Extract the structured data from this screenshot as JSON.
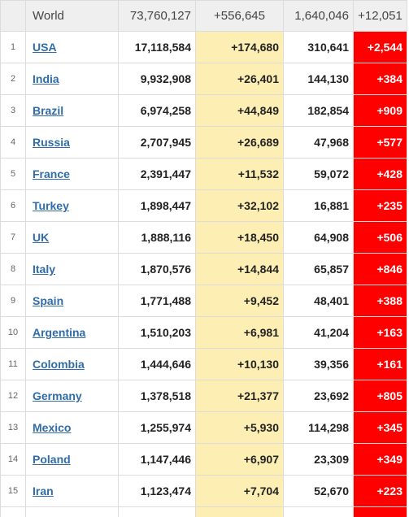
{
  "header": {
    "label": "World",
    "total_cases": "73,760,127",
    "new_cases": "+556,645",
    "total_deaths": "1,640,046",
    "new_deaths": "+12,051"
  },
  "rows": [
    {
      "rank": "1",
      "country": "USA",
      "total_cases": "17,118,584",
      "new_cases": "+174,680",
      "total_deaths": "310,641",
      "new_deaths": "+2,544"
    },
    {
      "rank": "2",
      "country": "India",
      "total_cases": "9,932,908",
      "new_cases": "+26,401",
      "total_deaths": "144,130",
      "new_deaths": "+384"
    },
    {
      "rank": "3",
      "country": "Brazil",
      "total_cases": "6,974,258",
      "new_cases": "+44,849",
      "total_deaths": "182,854",
      "new_deaths": "+909"
    },
    {
      "rank": "4",
      "country": "Russia",
      "total_cases": "2,707,945",
      "new_cases": "+26,689",
      "total_deaths": "47,968",
      "new_deaths": "+577"
    },
    {
      "rank": "5",
      "country": "France",
      "total_cases": "2,391,447",
      "new_cases": "+11,532",
      "total_deaths": "59,072",
      "new_deaths": "+428"
    },
    {
      "rank": "6",
      "country": "Turkey",
      "total_cases": "1,898,447",
      "new_cases": "+32,102",
      "total_deaths": "16,881",
      "new_deaths": "+235"
    },
    {
      "rank": "7",
      "country": "UK",
      "total_cases": "1,888,116",
      "new_cases": "+18,450",
      "total_deaths": "64,908",
      "new_deaths": "+506"
    },
    {
      "rank": "8",
      "country": "Italy",
      "total_cases": "1,870,576",
      "new_cases": "+14,844",
      "total_deaths": "65,857",
      "new_deaths": "+846"
    },
    {
      "rank": "9",
      "country": "Spain",
      "total_cases": "1,771,488",
      "new_cases": "+9,452",
      "total_deaths": "48,401",
      "new_deaths": "+388"
    },
    {
      "rank": "10",
      "country": "Argentina",
      "total_cases": "1,510,203",
      "new_cases": "+6,981",
      "total_deaths": "41,204",
      "new_deaths": "+163"
    },
    {
      "rank": "11",
      "country": "Colombia",
      "total_cases": "1,444,646",
      "new_cases": "+10,130",
      "total_deaths": "39,356",
      "new_deaths": "+161"
    },
    {
      "rank": "12",
      "country": "Germany",
      "total_cases": "1,378,518",
      "new_cases": "+21,377",
      "total_deaths": "23,692",
      "new_deaths": "+805"
    },
    {
      "rank": "13",
      "country": "Mexico",
      "total_cases": "1,255,974",
      "new_cases": "+5,930",
      "total_deaths": "114,298",
      "new_deaths": "+345"
    },
    {
      "rank": "14",
      "country": "Poland",
      "total_cases": "1,147,446",
      "new_cases": "+6,907",
      "total_deaths": "23,309",
      "new_deaths": "+349"
    },
    {
      "rank": "15",
      "country": "Iran",
      "total_cases": "1,123,474",
      "new_cases": "+7,704",
      "total_deaths": "52,670",
      "new_deaths": "+223"
    }
  ],
  "colors": {
    "header_bg": "#efefef",
    "new_cases_bg": "#fdeeb3",
    "new_deaths_bg": "#ff0000",
    "link": "#2f6ca8"
  }
}
